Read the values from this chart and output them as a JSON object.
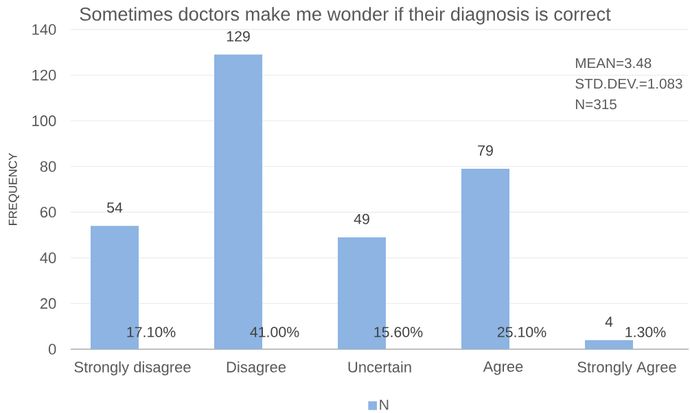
{
  "chart_data": {
    "type": "bar",
    "title": "Sometimes doctors make me wonder if their diagnosis is correct",
    "ylabel": "FREQUENCY",
    "categories": [
      "Strongly disagree",
      "Disagree",
      "Uncertain",
      "Agree",
      "Strongly Agree"
    ],
    "series": [
      {
        "name": "N",
        "color": "#8db4e2",
        "values": [
          54,
          129,
          49,
          79,
          4
        ]
      }
    ],
    "ylim": [
      0,
      140
    ],
    "yticks": [
      0,
      20,
      40,
      60,
      80,
      100,
      120,
      140
    ],
    "grid": "y",
    "legend": "bottom",
    "data_labels": true,
    "annotations": [
      {
        "text": "17.10%",
        "x": "Strongly disagree",
        "y": 0
      },
      {
        "text": "41.00%",
        "x": "Disagree",
        "y": 0
      },
      {
        "text": "15.60%",
        "x": "Uncertain",
        "y": 0
      },
      {
        "text": "25.10%",
        "x": "Agree",
        "y": 0
      },
      {
        "text": "1.30%",
        "x": "Strongly Agree",
        "y": 0
      },
      "MEAN=3.48",
      "STD.DEV.=1.083",
      "N=315"
    ]
  }
}
